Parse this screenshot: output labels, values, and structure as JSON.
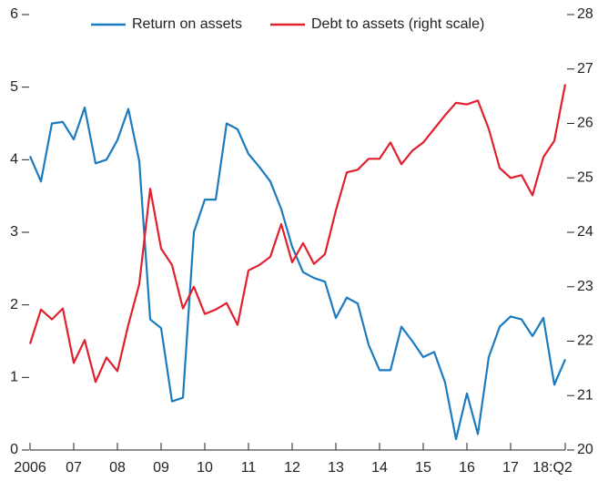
{
  "chart_data": {
    "type": "line",
    "categories": [
      "2006",
      null,
      null,
      null,
      "07",
      null,
      null,
      null,
      "08",
      null,
      null,
      null,
      "09",
      null,
      null,
      null,
      "10",
      null,
      null,
      null,
      "11",
      null,
      null,
      null,
      "12",
      null,
      null,
      null,
      "13",
      null,
      null,
      null,
      "14",
      null,
      null,
      null,
      "15",
      null,
      null,
      null,
      "16",
      null,
      null,
      null,
      "17",
      null,
      null,
      null,
      null,
      "18:Q2"
    ],
    "series": [
      {
        "name": "Return on assets",
        "color": "#1b7bbf",
        "axis": "y",
        "values": [
          4.05,
          3.7,
          4.5,
          4.52,
          4.28,
          4.72,
          3.95,
          4.0,
          4.27,
          4.7,
          3.98,
          1.8,
          1.68,
          0.67,
          0.72,
          3.0,
          3.45,
          3.45,
          4.5,
          4.42,
          4.08,
          3.9,
          3.7,
          3.32,
          2.8,
          2.45,
          2.37,
          2.32,
          1.82,
          2.1,
          2.02,
          1.45,
          1.1,
          1.1,
          1.7,
          1.5,
          1.28,
          1.35,
          0.93,
          0.15,
          0.78,
          0.22,
          1.28,
          1.7,
          1.84,
          1.8,
          1.57,
          1.82,
          0.9,
          1.25
        ]
      },
      {
        "name": "Debt to assets (right scale)",
        "color": "#e0202f",
        "axis": "y2",
        "values": [
          21.95,
          22.58,
          22.4,
          22.6,
          21.6,
          22.02,
          21.25,
          21.7,
          21.45,
          22.3,
          23.05,
          24.8,
          23.7,
          23.4,
          22.6,
          23.0,
          22.5,
          22.58,
          22.7,
          22.3,
          23.3,
          23.4,
          23.55,
          24.15,
          23.45,
          23.8,
          23.42,
          23.6,
          24.4,
          25.1,
          25.15,
          25.35,
          25.35,
          25.65,
          25.25,
          25.5,
          25.65,
          25.9,
          26.15,
          26.38,
          26.35,
          26.42,
          25.9,
          25.18,
          25.0,
          25.05,
          24.68,
          25.38,
          25.68,
          26.72
        ]
      }
    ],
    "ylim": [
      0,
      6
    ],
    "yticks": [
      0,
      1,
      2,
      3,
      4,
      5,
      6
    ],
    "y2lim": [
      20,
      28
    ],
    "y2ticks": [
      20,
      21,
      22,
      23,
      24,
      25,
      26,
      27,
      28
    ],
    "legend": "top"
  }
}
